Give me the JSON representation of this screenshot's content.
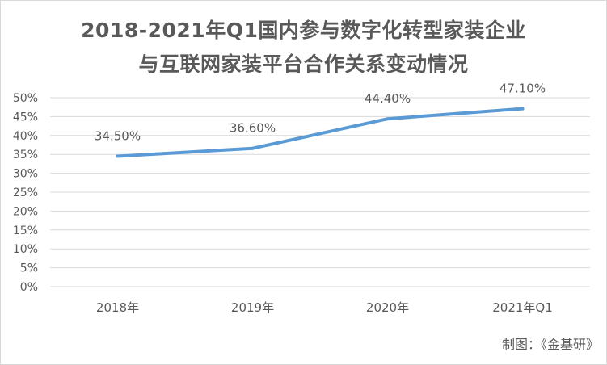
{
  "chart_data": {
    "type": "line",
    "title_line1": "2018-2021年Q1国内参与数字化转型家装企业",
    "title_line2": "与互联网家装平台合作关系变动情况",
    "categories": [
      "2018年",
      "2019年",
      "2020年",
      "2021年Q1"
    ],
    "series": [
      {
        "values": [
          34.5,
          36.6,
          44.4,
          47.1
        ],
        "data_labels": [
          "34.50%",
          "36.60%",
          "44.40%",
          "47.10%"
        ],
        "color": "#5b9bd5"
      }
    ],
    "y_ticks": [
      "0%",
      "5%",
      "10%",
      "15%",
      "20%",
      "25%",
      "30%",
      "35%",
      "40%",
      "45%",
      "50%"
    ],
    "ylim": [
      0,
      50
    ],
    "grid": true,
    "legend": "none",
    "source_note": "制图：《金基研》"
  },
  "colors": {
    "title": "#595959",
    "grid": "#d9d9d9",
    "line": "#5b9bd5",
    "text": "#595959"
  }
}
